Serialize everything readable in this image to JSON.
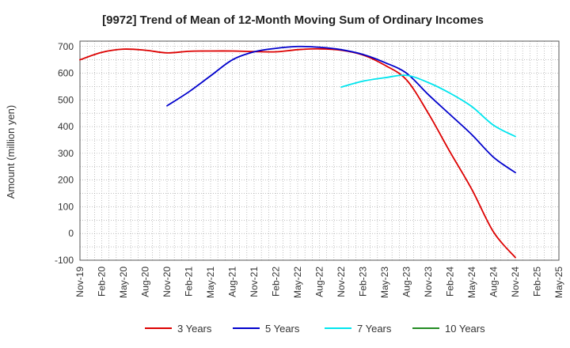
{
  "chart_data": {
    "type": "line",
    "title": "[9972]  Trend of Mean of 12-Month Moving Sum of Ordinary Incomes",
    "xlabel": "",
    "ylabel": "Amount (million yen)",
    "ylim": [
      -100,
      720
    ],
    "yticks": [
      -100,
      0,
      100,
      200,
      300,
      400,
      500,
      600,
      700
    ],
    "x_range": [
      "Nov-19",
      "May-25"
    ],
    "xticks": [
      "Nov-19",
      "Feb-20",
      "May-20",
      "Aug-20",
      "Nov-20",
      "Feb-21",
      "May-21",
      "Aug-21",
      "Nov-21",
      "Feb-22",
      "May-22",
      "Aug-22",
      "Nov-22",
      "Feb-23",
      "May-23",
      "Aug-23",
      "Nov-23",
      "Feb-24",
      "May-24",
      "Aug-24",
      "Nov-24",
      "Feb-25",
      "May-25"
    ],
    "grid": true,
    "legend_position": "bottom",
    "series": [
      {
        "name": "3 Years",
        "color": "#dd0000",
        "points": [
          [
            "Nov-19",
            650
          ],
          [
            "Feb-20",
            678
          ],
          [
            "May-20",
            690
          ],
          [
            "Aug-20",
            686
          ],
          [
            "Nov-20",
            676
          ],
          [
            "Feb-21",
            682
          ],
          [
            "May-21",
            683
          ],
          [
            "Aug-21",
            683
          ],
          [
            "Nov-21",
            681
          ],
          [
            "Feb-22",
            680
          ],
          [
            "May-22",
            688
          ],
          [
            "Aug-22",
            691
          ],
          [
            "Nov-22",
            686
          ],
          [
            "Feb-23",
            668
          ],
          [
            "May-23",
            630
          ],
          [
            "Aug-23",
            575
          ],
          [
            "Nov-23",
            450
          ],
          [
            "Feb-24",
            305
          ],
          [
            "May-24",
            165
          ],
          [
            "Aug-24",
            5
          ],
          [
            "Nov-24",
            -90
          ]
        ]
      },
      {
        "name": "5 Years",
        "color": "#0000cc",
        "points": [
          [
            "Nov-20",
            478
          ],
          [
            "Feb-21",
            530
          ],
          [
            "May-21",
            590
          ],
          [
            "Aug-21",
            650
          ],
          [
            "Nov-21",
            680
          ],
          [
            "Feb-22",
            693
          ],
          [
            "May-22",
            700
          ],
          [
            "Aug-22",
            697
          ],
          [
            "Nov-22",
            688
          ],
          [
            "Feb-23",
            670
          ],
          [
            "May-23",
            640
          ],
          [
            "Aug-23",
            600
          ],
          [
            "Nov-23",
            520
          ],
          [
            "Feb-24",
            445
          ],
          [
            "May-24",
            370
          ],
          [
            "Aug-24",
            285
          ],
          [
            "Nov-24",
            228
          ]
        ]
      },
      {
        "name": "7 Years",
        "color": "#00e5ee",
        "points": [
          [
            "Nov-22",
            548
          ],
          [
            "Feb-23",
            570
          ],
          [
            "May-23",
            583
          ],
          [
            "Aug-23",
            592
          ],
          [
            "Nov-23",
            565
          ],
          [
            "Feb-24",
            525
          ],
          [
            "May-24",
            475
          ],
          [
            "Aug-24",
            405
          ],
          [
            "Nov-24",
            363
          ]
        ]
      },
      {
        "name": "10 Years",
        "color": "#228b22",
        "points": []
      }
    ]
  }
}
